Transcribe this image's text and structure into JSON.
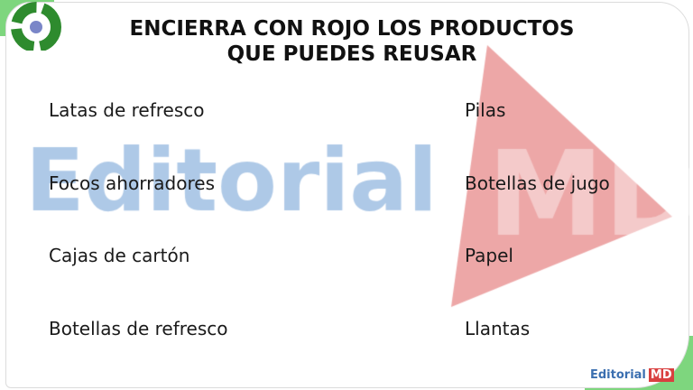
{
  "title_lines": [
    "ENCIERRA CON ROJO LOS PRODUCTOS",
    "QUE PUEDES REUSAR"
  ],
  "left_items": [
    "Latas de refresco",
    "Focos ahorradores",
    "Cajas de cartón",
    "Botellas de refresco"
  ],
  "right_items": [
    "Pilas",
    "Botellas de jugo",
    "Papel",
    "Llantas"
  ],
  "watermark": "Editorial MD",
  "footer_logo": "Editorial MD",
  "colors": {
    "accent_green": "#7ed67e",
    "watermark_blue": "#78a5d7",
    "watermark_red": "#e05a5a"
  }
}
